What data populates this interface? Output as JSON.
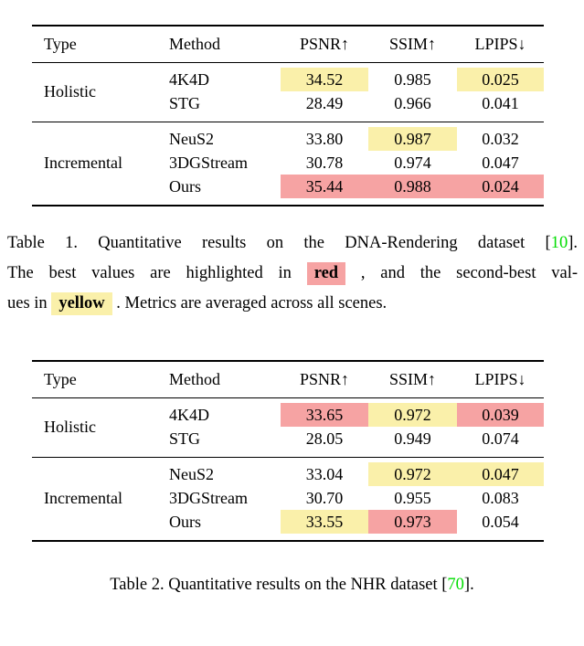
{
  "colors": {
    "best_highlight_red": "#F6A3A3",
    "second_best_highlight_yellow": "#FAF0AA",
    "citation_green": "#00DD00",
    "rule_black": "#000000",
    "page_background": "#FFFFFF"
  },
  "tables": [
    {
      "headers": {
        "type": "Type",
        "method": "Method",
        "psnr": "PSNR↑",
        "ssim": "SSIM↑",
        "lpips": "LPIPS↓"
      },
      "groups": [
        {
          "type": "Holistic",
          "rows": [
            {
              "method": "4K4D",
              "cells": [
                {
                  "v": "34.52",
                  "h": "yellow"
                },
                {
                  "v": "0.985",
                  "h": "none"
                },
                {
                  "v": "0.025",
                  "h": "yellow"
                }
              ]
            },
            {
              "method": "STG",
              "cells": [
                {
                  "v": "28.49",
                  "h": "none"
                },
                {
                  "v": "0.966",
                  "h": "none"
                },
                {
                  "v": "0.041",
                  "h": "none"
                }
              ]
            }
          ]
        },
        {
          "type": "Incremental",
          "rows": [
            {
              "method": "NeuS2",
              "cells": [
                {
                  "v": "33.80",
                  "h": "none"
                },
                {
                  "v": "0.987",
                  "h": "yellow"
                },
                {
                  "v": "0.032",
                  "h": "none"
                }
              ]
            },
            {
              "method": "3DGStream",
              "cells": [
                {
                  "v": "30.78",
                  "h": "none"
                },
                {
                  "v": "0.974",
                  "h": "none"
                },
                {
                  "v": "0.047",
                  "h": "none"
                }
              ]
            },
            {
              "method": "Ours",
              "cells": [
                {
                  "v": "35.44",
                  "h": "red"
                },
                {
                  "v": "0.988",
                  "h": "red"
                },
                {
                  "v": "0.024",
                  "h": "red"
                }
              ]
            }
          ]
        }
      ]
    },
    {
      "headers": {
        "type": "Type",
        "method": "Method",
        "psnr": "PSNR↑",
        "ssim": "SSIM↑",
        "lpips": "LPIPS↓"
      },
      "groups": [
        {
          "type": "Holistic",
          "rows": [
            {
              "method": "4K4D",
              "cells": [
                {
                  "v": "33.65",
                  "h": "red"
                },
                {
                  "v": "0.972",
                  "h": "yellow"
                },
                {
                  "v": "0.039",
                  "h": "red"
                }
              ]
            },
            {
              "method": "STG",
              "cells": [
                {
                  "v": "28.05",
                  "h": "none"
                },
                {
                  "v": "0.949",
                  "h": "none"
                },
                {
                  "v": "0.074",
                  "h": "none"
                }
              ]
            }
          ]
        },
        {
          "type": "Incremental",
          "rows": [
            {
              "method": "NeuS2",
              "cells": [
                {
                  "v": "33.04",
                  "h": "none"
                },
                {
                  "v": "0.972",
                  "h": "yellow"
                },
                {
                  "v": "0.047",
                  "h": "yellow"
                }
              ]
            },
            {
              "method": "3DGStream",
              "cells": [
                {
                  "v": "30.70",
                  "h": "none"
                },
                {
                  "v": "0.955",
                  "h": "none"
                },
                {
                  "v": "0.083",
                  "h": "none"
                }
              ]
            },
            {
              "method": "Ours",
              "cells": [
                {
                  "v": "33.55",
                  "h": "yellow"
                },
                {
                  "v": "0.973",
                  "h": "red"
                },
                {
                  "v": "0.054",
                  "h": "none"
                }
              ]
            }
          ]
        }
      ]
    }
  ],
  "captions": {
    "table1": {
      "line1": {
        "before": "Table 1. Quantitative results on the DNA-Rendering dataset [",
        "cite": "10",
        "after": "]."
      },
      "line2": {
        "before": "The best values are highlighted in",
        "word": "red",
        "after": " , and the second-best val-"
      },
      "line3": {
        "before": "ues in",
        "word": "yellow",
        "after": " . Metrics are averaged across all scenes."
      }
    },
    "table2": {
      "before": "Table 2. Quantitative results on the NHR dataset [",
      "cite": "70",
      "after": "]."
    }
  }
}
